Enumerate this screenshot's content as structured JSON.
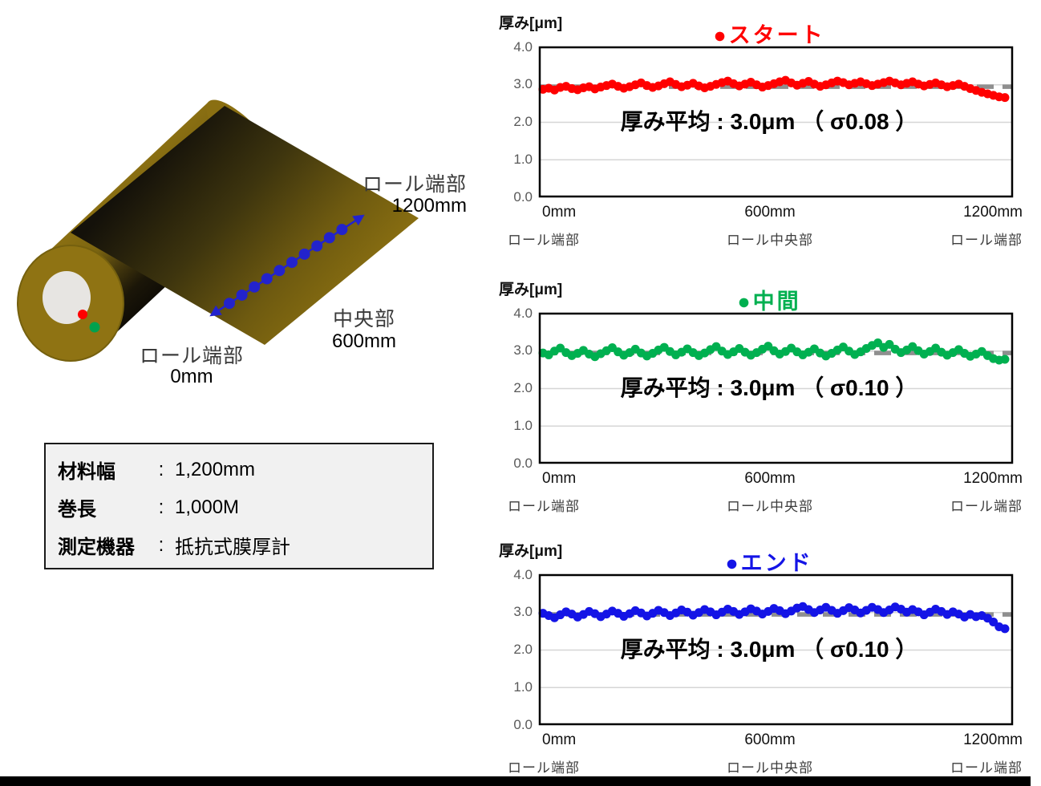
{
  "page": {
    "background": "#FFFFFF",
    "bottom_bar_color": "#000000"
  },
  "illustration": {
    "labels": {
      "top_line1": "ロール端部",
      "top_line2": "1200mm",
      "mid_line1": "中央部",
      "mid_line2": "600mm",
      "bot_line1": "ロール端部",
      "bot_line2": "0mm"
    },
    "markers": {
      "start": "#FF0000",
      "middle": "#00A14E"
    },
    "measurement_line": {
      "dot_count": 10,
      "color": "#2323CC"
    },
    "roll_colors": {
      "gold": "#8A6F12",
      "dark": "#14110A",
      "core_hole": "#E7E5E2"
    }
  },
  "spec_box": {
    "colon": ":",
    "rows": [
      {
        "label": "材料幅",
        "value": "1,200mm"
      },
      {
        "label": "巻長",
        "value": "1,000M"
      },
      {
        "label": "測定機器",
        "value": "抵抗式膜厚計"
      }
    ]
  },
  "chart_data": [
    {
      "type": "scatter",
      "title": "●スタート",
      "title_color": "#FF0000",
      "point_color": "#FF0000",
      "ylabel": "厚み[μm]",
      "ylim": [
        0.0,
        4.0
      ],
      "ytick_labels": [
        "4.0",
        "3.0",
        "2.0",
        "1.0",
        "0.0"
      ],
      "xtick_labels": [
        "0mm",
        "600mm",
        "1200mm"
      ],
      "x_sub_labels": [
        "ロール端部",
        "ロール中央部",
        "ロール端部"
      ],
      "annotation": "厚み平均 : 3.0μm （ σ0.08 ）",
      "mean_um": 3.0,
      "sigma": 0.08,
      "mean_line_value": 2.95,
      "x_start_mm": 0,
      "x_step_mm": 15,
      "values": [
        2.88,
        2.91,
        2.86,
        2.93,
        2.96,
        2.9,
        2.87,
        2.92,
        2.95,
        2.89,
        2.94,
        2.98,
        3.02,
        2.96,
        2.91,
        2.95,
        3.0,
        3.05,
        2.98,
        2.93,
        2.97,
        3.03,
        3.08,
        3.01,
        2.95,
        2.99,
        3.04,
        2.97,
        2.92,
        2.96,
        3.01,
        3.06,
        3.1,
        3.03,
        2.97,
        3.02,
        3.07,
        3.0,
        2.94,
        2.98,
        3.03,
        3.08,
        3.12,
        3.05,
        2.99,
        3.04,
        3.09,
        3.02,
        2.96,
        3.0,
        3.05,
        3.1,
        3.06,
        3.0,
        3.04,
        3.08,
        3.03,
        2.98,
        3.02,
        3.06,
        3.1,
        3.05,
        3.0,
        3.04,
        3.08,
        3.02,
        2.97,
        3.01,
        3.05,
        3.0,
        2.95,
        2.98,
        3.02,
        2.96,
        2.9,
        2.85,
        2.8,
        2.76,
        2.72,
        2.68,
        2.66
      ]
    },
    {
      "type": "scatter",
      "title": "●中間",
      "title_color": "#00B050",
      "point_color": "#00B050",
      "ylabel": "厚み[μm]",
      "ylim": [
        0.0,
        4.0
      ],
      "ytick_labels": [
        "4.0",
        "3.0",
        "2.0",
        "1.0",
        "0.0"
      ],
      "xtick_labels": [
        "0mm",
        "600mm",
        "1200mm"
      ],
      "x_sub_labels": [
        "ロール端部",
        "ロール中央部",
        "ロール端部"
      ],
      "annotation": "厚み平均 : 3.0μm （ σ0.10 ）",
      "mean_um": 3.0,
      "sigma": 0.1,
      "mean_line_value": 2.95,
      "x_start_mm": 0,
      "x_step_mm": 15,
      "values": [
        2.95,
        2.9,
        3.0,
        3.08,
        2.96,
        2.88,
        2.94,
        3.02,
        2.92,
        2.85,
        2.93,
        3.01,
        3.09,
        2.98,
        2.89,
        2.96,
        3.05,
        2.95,
        2.87,
        2.94,
        3.03,
        3.1,
        2.99,
        2.9,
        2.97,
        3.06,
        2.96,
        2.88,
        2.95,
        3.04,
        3.12,
        3.0,
        2.91,
        2.98,
        3.07,
        2.97,
        2.89,
        2.96,
        3.05,
        3.13,
        3.01,
        2.92,
        2.99,
        3.08,
        2.98,
        2.9,
        2.97,
        3.06,
        2.95,
        2.87,
        2.94,
        3.03,
        3.11,
        3.0,
        2.91,
        2.98,
        3.07,
        3.15,
        3.22,
        3.1,
        3.18,
        3.05,
        2.96,
        3.03,
        3.12,
        3.01,
        2.92,
        2.99,
        3.08,
        2.97,
        2.89,
        2.96,
        3.04,
        2.94,
        2.86,
        2.92,
        2.99,
        2.88,
        2.8,
        2.76,
        2.78
      ]
    },
    {
      "type": "scatter",
      "title": "●エンド",
      "title_color": "#1414E6",
      "point_color": "#1414E6",
      "ylabel": "厚み[μm]",
      "ylim": [
        0.0,
        4.0
      ],
      "ytick_labels": [
        "4.0",
        "3.0",
        "2.0",
        "1.0",
        "0.0"
      ],
      "xtick_labels": [
        "0mm",
        "600mm",
        "1200mm"
      ],
      "x_sub_labels": [
        "ロール端部",
        "ロール中央部",
        "ロール端部"
      ],
      "annotation": "厚み平均 : 3.0μm （ σ0.10 ）",
      "mean_um": 3.0,
      "sigma": 0.1,
      "mean_line_value": 2.95,
      "x_start_mm": 0,
      "x_step_mm": 15,
      "values": [
        2.98,
        2.92,
        2.86,
        2.94,
        3.02,
        2.96,
        2.88,
        2.95,
        3.03,
        2.97,
        2.89,
        2.96,
        3.04,
        2.98,
        2.9,
        2.97,
        3.05,
        2.99,
        2.91,
        2.98,
        3.06,
        3.0,
        2.92,
        2.99,
        3.07,
        3.01,
        2.93,
        3.0,
        3.08,
        3.02,
        2.94,
        3.01,
        3.09,
        3.03,
        2.95,
        3.02,
        3.1,
        3.04,
        2.96,
        3.03,
        3.11,
        3.05,
        2.97,
        3.04,
        3.12,
        3.16,
        3.08,
        3.0,
        3.07,
        3.14,
        3.06,
        2.98,
        3.05,
        3.13,
        3.07,
        2.99,
        3.06,
        3.14,
        3.08,
        3.0,
        3.07,
        3.15,
        3.09,
        3.01,
        3.08,
        3.02,
        2.94,
        3.01,
        3.09,
        3.03,
        2.95,
        3.02,
        2.96,
        2.88,
        2.95,
        2.89,
        2.92,
        2.85,
        2.75,
        2.62,
        2.57
      ]
    }
  ]
}
